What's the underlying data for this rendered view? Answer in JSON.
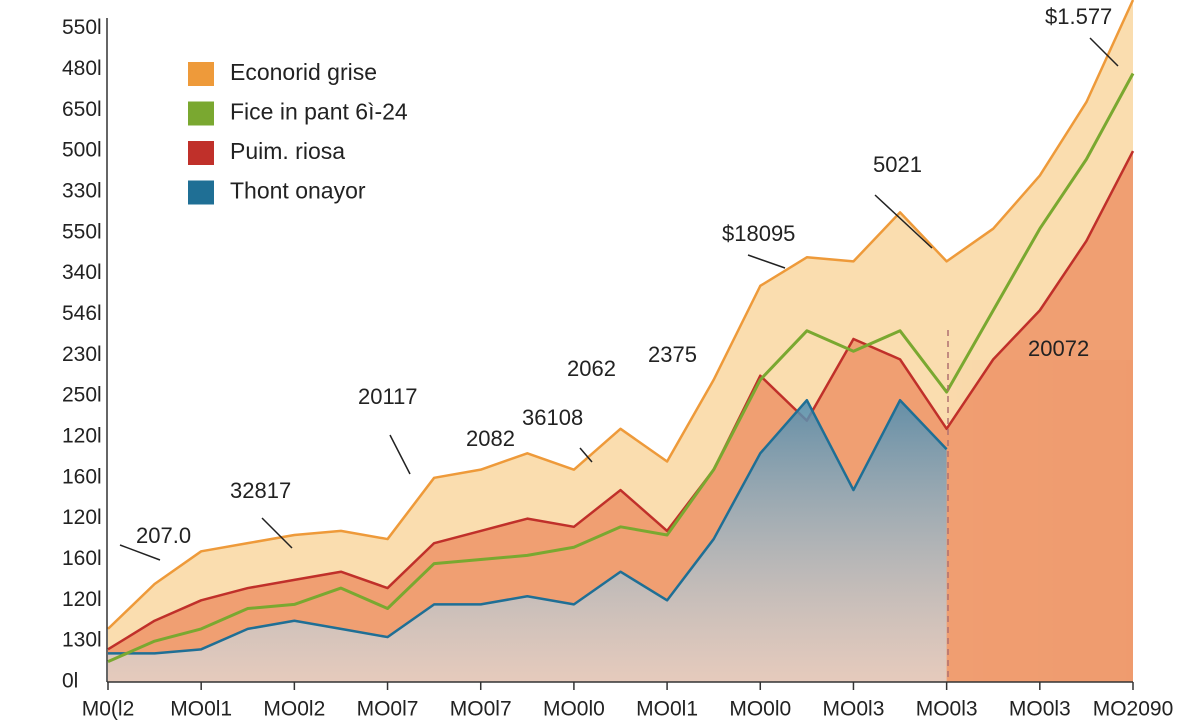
{
  "chart_data": {
    "type": "area",
    "x": [
      0,
      0.5,
      1,
      1.5,
      2,
      2.5,
      3,
      3.5,
      4,
      4.5,
      5,
      5.5,
      6,
      6.5,
      7,
      7.5,
      8,
      8.5,
      9,
      9.5,
      10,
      10.5,
      11
    ],
    "xlim": [
      0,
      11
    ],
    "xticks": [
      {
        "value": 0,
        "label": "M0(l2"
      },
      {
        "value": 1,
        "label": "MO0l1"
      },
      {
        "value": 2,
        "label": "MO0l2"
      },
      {
        "value": 3,
        "label": "MO0l7"
      },
      {
        "value": 4,
        "label": "MO0l7"
      },
      {
        "value": 5,
        "label": "MO0l0"
      },
      {
        "value": 6,
        "label": "MO0l1"
      },
      {
        "value": 7,
        "label": "MO0l0"
      },
      {
        "value": 8,
        "label": "MO0l3"
      },
      {
        "value": 9,
        "label": "MO0l3"
      },
      {
        "value": 10,
        "label": "MO0l3"
      },
      {
        "value": 11,
        "label": "MO2090"
      }
    ],
    "ylim": [
      0,
      16.7
    ],
    "yticks": [
      {
        "value": 0,
        "label": "0l"
      },
      {
        "value": 1,
        "label": "130l"
      },
      {
        "value": 2,
        "label": "120l"
      },
      {
        "value": 3,
        "label": "160l"
      },
      {
        "value": 4,
        "label": "120l"
      },
      {
        "value": 5,
        "label": "160l"
      },
      {
        "value": 6,
        "label": "120l"
      },
      {
        "value": 7,
        "label": "250l"
      },
      {
        "value": 8,
        "label": "230l"
      },
      {
        "value": 9,
        "label": "546l"
      },
      {
        "value": 10,
        "label": "340l"
      },
      {
        "value": 11,
        "label": "550l"
      },
      {
        "value": 12,
        "label": "330l"
      },
      {
        "value": 13,
        "label": "500l"
      },
      {
        "value": 14,
        "label": "650l"
      },
      {
        "value": 15,
        "label": "480l"
      },
      {
        "value": 16,
        "label": "550l"
      }
    ],
    "series": [
      {
        "name": "Econorid grise",
        "color": "#ee9a3a",
        "values": [
          1.3,
          2.4,
          3.2,
          3.4,
          3.6,
          3.7,
          3.5,
          5.0,
          5.2,
          5.6,
          5.2,
          6.2,
          5.4,
          7.4,
          9.7,
          10.4,
          10.3,
          11.5,
          10.3,
          11.1,
          12.4,
          14.2,
          16.7
        ]
      },
      {
        "name": "Fice in pant 6ì-24",
        "color": "#7aa830",
        "values": [
          0.5,
          1.0,
          1.3,
          1.8,
          1.9,
          2.3,
          1.8,
          2.9,
          3.0,
          3.1,
          3.3,
          3.8,
          3.6,
          5.2,
          7.4,
          8.6,
          8.1,
          8.6,
          7.1,
          9.1,
          11.1,
          12.8,
          14.9
        ]
      },
      {
        "name": "Puim. riosa",
        "color": "#c0302a",
        "values": [
          0.8,
          1.5,
          2.0,
          2.3,
          2.5,
          2.7,
          2.3,
          3.4,
          3.7,
          4.0,
          3.8,
          4.7,
          3.7,
          5.2,
          7.5,
          6.4,
          8.4,
          7.9,
          6.2,
          7.9,
          9.1,
          10.8,
          13.0
        ]
      },
      {
        "name": "Thont onayor",
        "color": "#1f6f95",
        "values": [
          0.7,
          0.7,
          0.8,
          1.3,
          1.5,
          1.3,
          1.1,
          1.9,
          1.9,
          2.1,
          1.9,
          2.7,
          2.0,
          3.5,
          5.6,
          6.9,
          4.7,
          6.9,
          5.7,
          null,
          null,
          null,
          null
        ]
      }
    ],
    "annotations": [
      "$1.577",
      "5021",
      "$18095",
      "2375",
      "2062",
      "36108",
      "20117",
      "2082",
      "32817",
      "207.0",
      "20072"
    ]
  }
}
